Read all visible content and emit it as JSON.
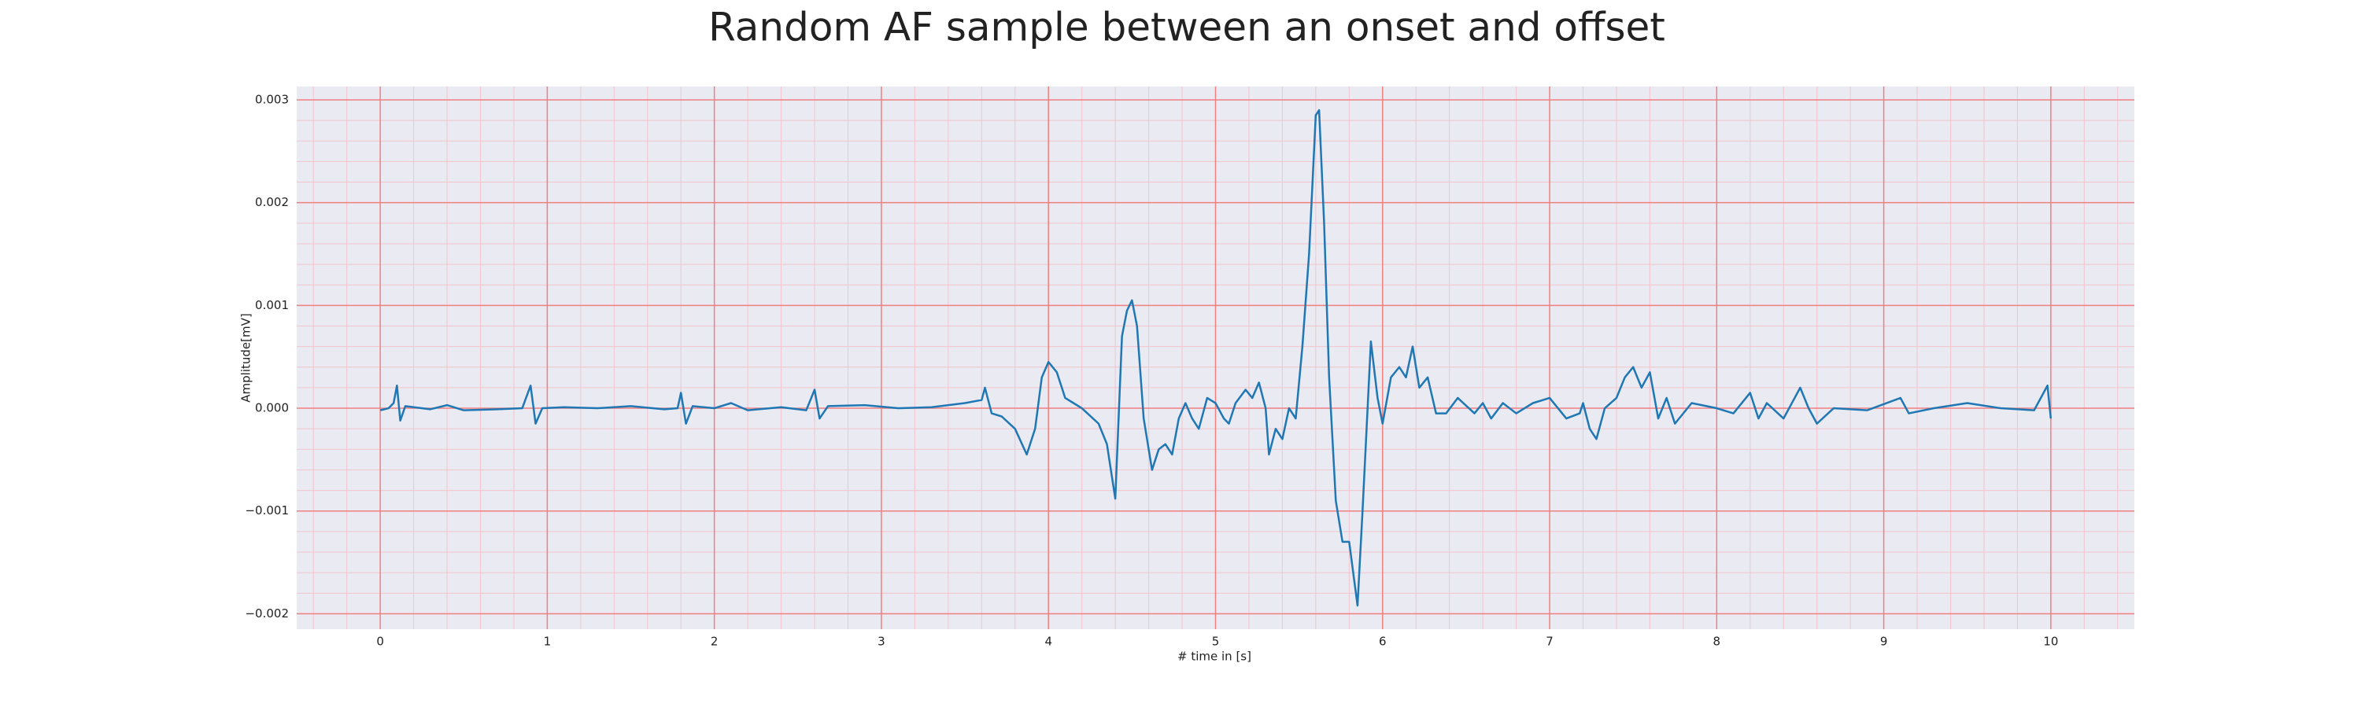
{
  "chart_data": {
    "type": "line",
    "title": "Random AF sample between an onset and offset",
    "xlabel": "# time in [s]",
    "ylabel": "Amplitude[mV]",
    "x": [
      0.0,
      0.05,
      0.08,
      0.1,
      0.12,
      0.15,
      0.3,
      0.4,
      0.5,
      0.7,
      0.85,
      0.9,
      0.93,
      0.97,
      1.1,
      1.3,
      1.5,
      1.7,
      1.78,
      1.8,
      1.83,
      1.87,
      2.0,
      2.1,
      2.2,
      2.4,
      2.55,
      2.6,
      2.63,
      2.68,
      2.9,
      3.1,
      3.3,
      3.5,
      3.6,
      3.62,
      3.66,
      3.72,
      3.8,
      3.87,
      3.92,
      3.96,
      4.0,
      4.05,
      4.1,
      4.15,
      4.2,
      4.3,
      4.35,
      4.4,
      4.44,
      4.47,
      4.5,
      4.53,
      4.57,
      4.62,
      4.66,
      4.7,
      4.74,
      4.78,
      4.82,
      4.86,
      4.9,
      4.95,
      5.0,
      5.05,
      5.08,
      5.12,
      5.18,
      5.22,
      5.26,
      5.3,
      5.32,
      5.36,
      5.4,
      5.44,
      5.48,
      5.52,
      5.56,
      5.6,
      5.62,
      5.65,
      5.68,
      5.72,
      5.76,
      5.8,
      5.85,
      5.88,
      5.93,
      5.97,
      6.0,
      6.05,
      6.1,
      6.14,
      6.18,
      6.22,
      6.27,
      6.32,
      6.38,
      6.45,
      6.55,
      6.6,
      6.65,
      6.72,
      6.8,
      6.9,
      7.0,
      7.1,
      7.18,
      7.2,
      7.24,
      7.28,
      7.33,
      7.4,
      7.45,
      7.5,
      7.55,
      7.6,
      7.65,
      7.7,
      7.75,
      7.85,
      8.0,
      8.1,
      8.2,
      8.25,
      8.3,
      8.4,
      8.5,
      8.55,
      8.6,
      8.7,
      8.9,
      9.1,
      9.15,
      9.3,
      9.5,
      9.7,
      9.9,
      9.98,
      10.0
    ],
    "series": [
      {
        "name": "Amplitude",
        "color": "#1f77b4",
        "values": [
          -2e-05,
          0.0,
          5e-05,
          0.00022,
          -0.00012,
          2e-05,
          -1e-05,
          3e-05,
          -2e-05,
          -1e-05,
          0.0,
          0.00022,
          -0.00015,
          0.0,
          1e-05,
          0.0,
          2e-05,
          -1e-05,
          0.0,
          0.00015,
          -0.00015,
          2e-05,
          0.0,
          5e-05,
          -2e-05,
          1e-05,
          -2e-05,
          0.00018,
          -0.0001,
          2e-05,
          3e-05,
          0.0,
          1e-05,
          5e-05,
          8e-05,
          0.0002,
          -5e-05,
          -8e-05,
          -0.0002,
          -0.00045,
          -0.0002,
          0.0003,
          0.00045,
          0.00035,
          0.0001,
          5e-05,
          0.0,
          -0.00015,
          -0.00035,
          -0.00088,
          0.0007,
          0.00095,
          0.00105,
          0.0008,
          -0.0001,
          -0.0006,
          -0.0004,
          -0.00035,
          -0.00045,
          -0.0001,
          5e-05,
          -0.0001,
          -0.0002,
          0.0001,
          5e-05,
          -0.0001,
          -0.00015,
          5e-05,
          0.00018,
          0.0001,
          0.00025,
          0.0,
          -0.00045,
          -0.0002,
          -0.0003,
          0.0,
          -0.0001,
          0.0006,
          0.0015,
          0.00285,
          0.0029,
          0.0018,
          0.0003,
          -0.0009,
          -0.0013,
          -0.0013,
          -0.00192,
          -0.001,
          0.00065,
          0.0001,
          -0.00015,
          0.0003,
          0.0004,
          0.0003,
          0.0006,
          0.0002,
          0.0003,
          -5e-05,
          -5e-05,
          0.0001,
          -5e-05,
          5e-05,
          -0.0001,
          5e-05,
          -5e-05,
          5e-05,
          0.0001,
          -0.0001,
          -5e-05,
          5e-05,
          -0.0002,
          -0.0003,
          0.0,
          0.0001,
          0.0003,
          0.0004,
          0.0002,
          0.00035,
          -0.0001,
          0.0001,
          -0.00015,
          5e-05,
          0.0,
          -5e-05,
          0.00015,
          -0.0001,
          5e-05,
          -0.0001,
          0.0002,
          0.0,
          -0.00015,
          0.0,
          -2e-05,
          0.0001,
          -5e-05,
          0.0,
          5e-05,
          0.0,
          -2e-05,
          0.00022,
          -0.0001
        ]
      }
    ],
    "xlim": [
      -0.5,
      10.5
    ],
    "ylim": [
      -0.00215,
      0.00313
    ],
    "xticks": [
      0,
      1,
      2,
      3,
      4,
      5,
      6,
      7,
      8,
      9,
      10
    ],
    "yticks": [
      {
        "value": -0.002,
        "label": "−0.002"
      },
      {
        "value": -0.001,
        "label": "−0.001"
      },
      {
        "value": 0,
        "label": "0.000"
      },
      {
        "value": 0.001,
        "label": "0.001"
      },
      {
        "value": 0.002,
        "label": "0.002"
      },
      {
        "value": 0.003,
        "label": "0.003"
      }
    ],
    "grid": true,
    "minor_grid": true,
    "background": "#eaeaf2",
    "grid_color": "#f08080",
    "minor_grid_color": "#f3c4cc"
  }
}
